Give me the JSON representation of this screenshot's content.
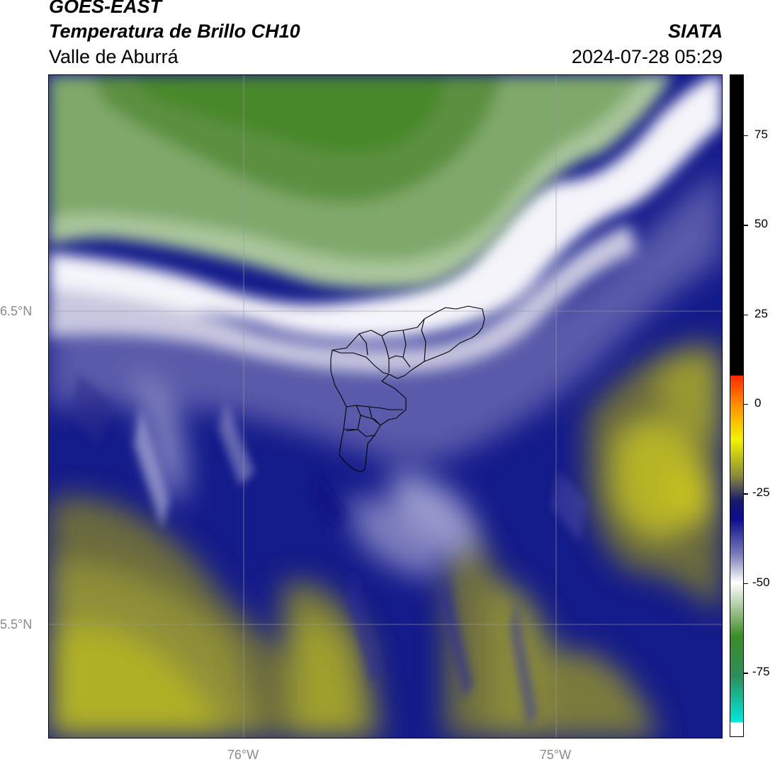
{
  "header": {
    "satellite": "GOES-EAST",
    "product": "Temperatura de Brillo CH10",
    "region": "Valle de Aburrá",
    "organization": "SIATA",
    "datetime": "2024-07-28 05:29"
  },
  "map": {
    "lat_labels": [
      "6.5°N",
      "5.5°N"
    ],
    "lon_labels": [
      "76°W",
      "75°W"
    ],
    "gridlines": true,
    "region_outline": "Valle de Aburrá municipalities"
  },
  "colorbar": {
    "ticks": [
      "75",
      "50",
      "25",
      "0",
      "-25",
      "-50",
      "-75"
    ],
    "tick_values": [
      75,
      50,
      25,
      0,
      -25,
      -50,
      -75
    ],
    "range": [
      -93,
      92
    ],
    "stops": [
      {
        "value": 92,
        "color": "#000000"
      },
      {
        "value": 8,
        "color": "#000000"
      },
      {
        "value": 7.9,
        "color": "#ff2a00"
      },
      {
        "value": 0,
        "color": "#ff8c00"
      },
      {
        "value": -10,
        "color": "#f2f200"
      },
      {
        "value": -20,
        "color": "#8c8c3a"
      },
      {
        "value": -27,
        "color": "#1a1a6e"
      },
      {
        "value": -32,
        "color": "#0a0a8c"
      },
      {
        "value": -42,
        "color": "#7a7ab8"
      },
      {
        "value": -50,
        "color": "#ffffff"
      },
      {
        "value": -58,
        "color": "#9cc08c"
      },
      {
        "value": -65,
        "color": "#3c8c28"
      },
      {
        "value": -76,
        "color": "#2e8e5a"
      },
      {
        "value": -89,
        "color": "#00e8dc"
      },
      {
        "value": -89.1,
        "color": "#ffffff"
      },
      {
        "value": -93,
        "color": "#ffffff"
      }
    ]
  }
}
